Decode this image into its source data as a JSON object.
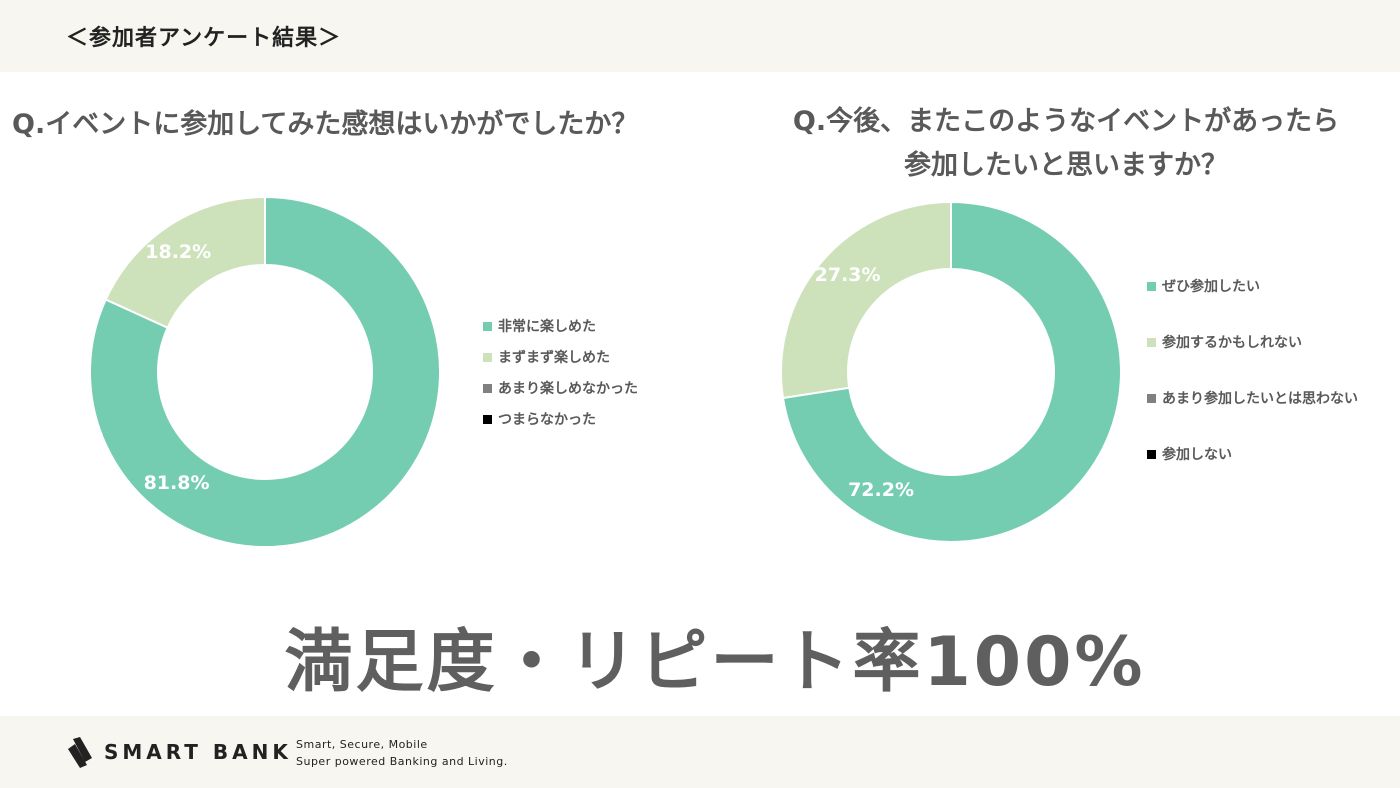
{
  "header": {
    "section_title": "＜参加者アンケート結果＞"
  },
  "colors": {
    "very": "#75cdb1",
    "somewhat": "#cde2bb",
    "neutral": "#808080",
    "no": "#000000",
    "text": "#595959",
    "band": "#f7f6f1"
  },
  "chart_data": [
    {
      "type": "pie",
      "title": "Q.イベントに参加してみた感想はいかがでしたか？",
      "categories": [
        "非常に楽しめた",
        "まずまず楽しめた",
        "あまり楽しめなかった",
        "つまらなかった"
      ],
      "values": [
        81.8,
        18.2,
        0,
        0
      ],
      "labels": [
        "81.8%",
        "18.2%",
        "",
        ""
      ],
      "colors": [
        "#75cdb1",
        "#cde2bb",
        "#808080",
        "#000000"
      ],
      "legend": "right"
    },
    {
      "type": "pie",
      "title": "Q.今後、またこのようなイベントがあったら参加したいと思いますか？",
      "title_lines": [
        "Q.今後、またこのようなイベントがあったら",
        "参加したいと思いますか？"
      ],
      "categories": [
        "ぜひ参加したい",
        "参加するかもしれない",
        "あまり参加したいとは思わない",
        "参加しない"
      ],
      "values": [
        72.2,
        27.3,
        0,
        0
      ],
      "labels": [
        "72.2%",
        "27.3%",
        "",
        ""
      ],
      "colors": [
        "#75cdb1",
        "#cde2bb",
        "#808080",
        "#000000"
      ],
      "legend": "right"
    }
  ],
  "headline": "満足度・リピート率100%",
  "footer": {
    "brand": "SMART BANK",
    "tagline_1": "Smart, Secure, Mobile",
    "tagline_2": "Super powered Banking and Living."
  }
}
